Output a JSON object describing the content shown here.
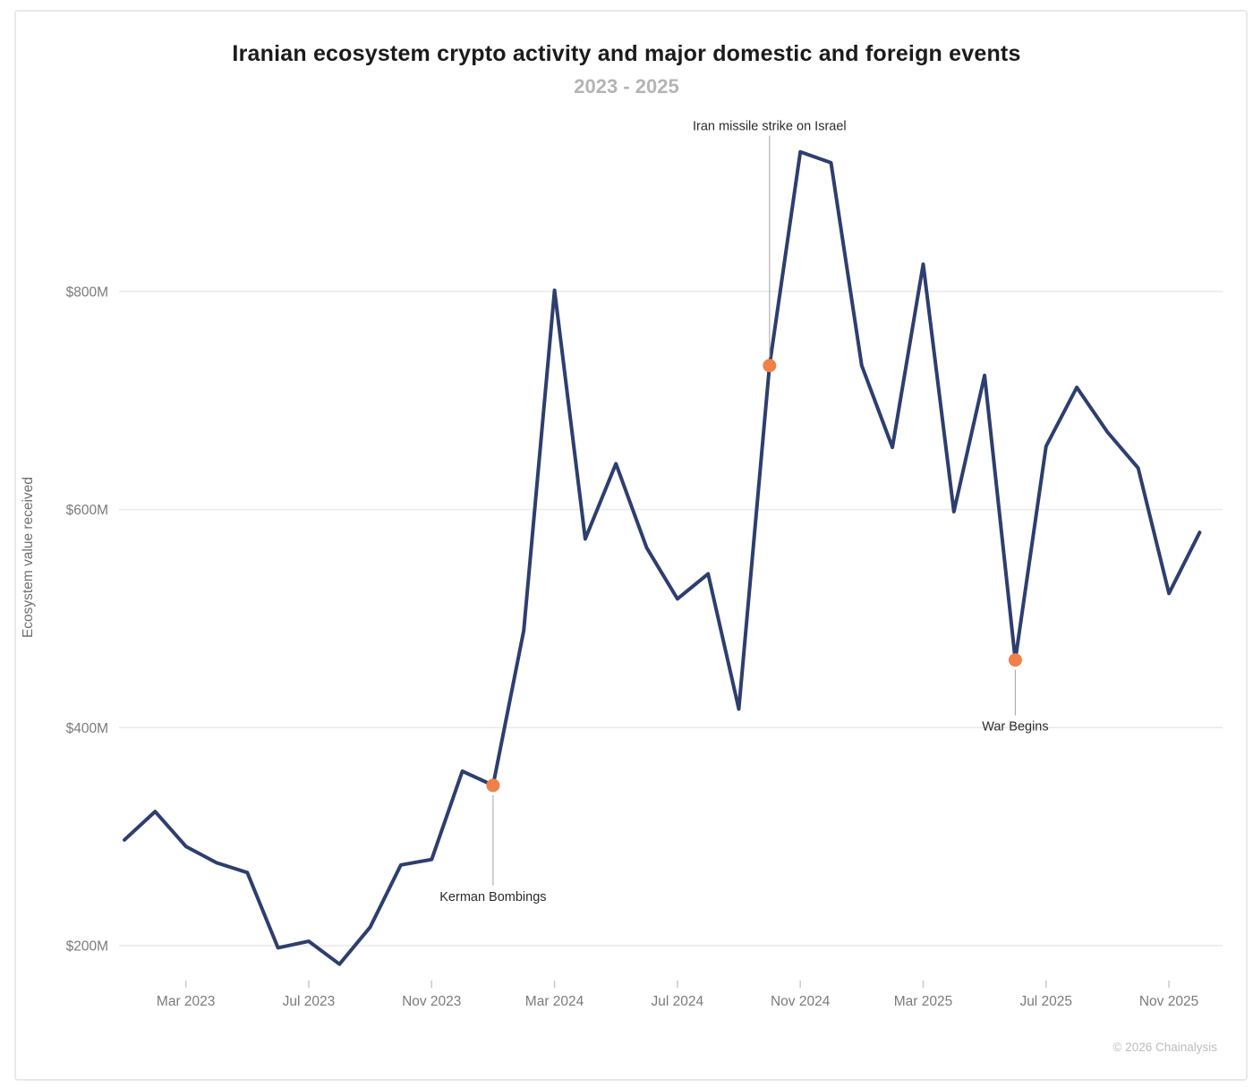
{
  "header": {
    "title": "Iranian ecosystem crypto activity and major domestic and foreign events",
    "subtitle": "2023 - 2025"
  },
  "footer": {
    "copyright": "© 2026 Chainalysis"
  },
  "chart_data": {
    "type": "line",
    "title": "Iranian ecosystem crypto activity and major domestic and foreign events",
    "subtitle": "2023 - 2025",
    "ylabel": "Ecosystem value received",
    "unit": "USD millions ($M)",
    "grid": "horizontal",
    "legend_position": "none",
    "ylim": [
      150,
      960
    ],
    "x": [
      "Jan 2023",
      "Feb 2023",
      "Mar 2023",
      "Apr 2023",
      "May 2023",
      "Jun 2023",
      "Jul 2023",
      "Aug 2023",
      "Sep 2023",
      "Oct 2023",
      "Nov 2023",
      "Dec 2023",
      "Jan 2024",
      "Feb 2024",
      "Mar 2024",
      "Apr 2024",
      "May 2024",
      "Jun 2024",
      "Jul 2024",
      "Aug 2024",
      "Sep 2024",
      "Oct 2024",
      "Nov 2024",
      "Dec 2024",
      "Jan 2025",
      "Feb 2025",
      "Mar 2025",
      "Apr 2025",
      "May 2025",
      "Jun 2025",
      "Jul 2025",
      "Aug 2025",
      "Sep 2025",
      "Oct 2025",
      "Nov 2025",
      "Dec 2025"
    ],
    "values": [
      297,
      323,
      291,
      276,
      267,
      198,
      204,
      183,
      217,
      274,
      279,
      360,
      347,
      489,
      801,
      573,
      642,
      565,
      518,
      541,
      417,
      732,
      928,
      918,
      732,
      657,
      825,
      598,
      723,
      462,
      658,
      712,
      671,
      638,
      523,
      579
    ],
    "y_ticks": [
      {
        "label": "$200M",
        "value": 200
      },
      {
        "label": "$400M",
        "value": 400
      },
      {
        "label": "$600M",
        "value": 600
      },
      {
        "label": "$800M",
        "value": 800
      }
    ],
    "x_ticks": [
      "Mar 2023",
      "Jul 2023",
      "Nov 2023",
      "Mar 2024",
      "Jul 2024",
      "Nov 2024",
      "Mar 2025",
      "Jul 2025",
      "Nov 2025"
    ],
    "annotations": [
      {
        "x": "Jan 2024",
        "value": 347,
        "label": "Kerman Bombings",
        "label_position": "below",
        "label_dy": 124
      },
      {
        "x": "Oct 2024",
        "value": 732,
        "label": "Iran missile strike on Israel",
        "label_position": "above",
        "label_dy": -268
      },
      {
        "x": "Jun 2025",
        "value": 462,
        "label": "War Begins",
        "label_position": "below",
        "label_dy": 74
      }
    ],
    "colors": {
      "line": "#2d3e6f",
      "event_dot": "#f0804a",
      "grid": "#e9e9e9",
      "tick_mark": "#c9c9c9",
      "tick_text": "#7b7b7b",
      "annotation_text": "#2b2b2b",
      "annotation_connector": "#b0b0b0"
    }
  }
}
